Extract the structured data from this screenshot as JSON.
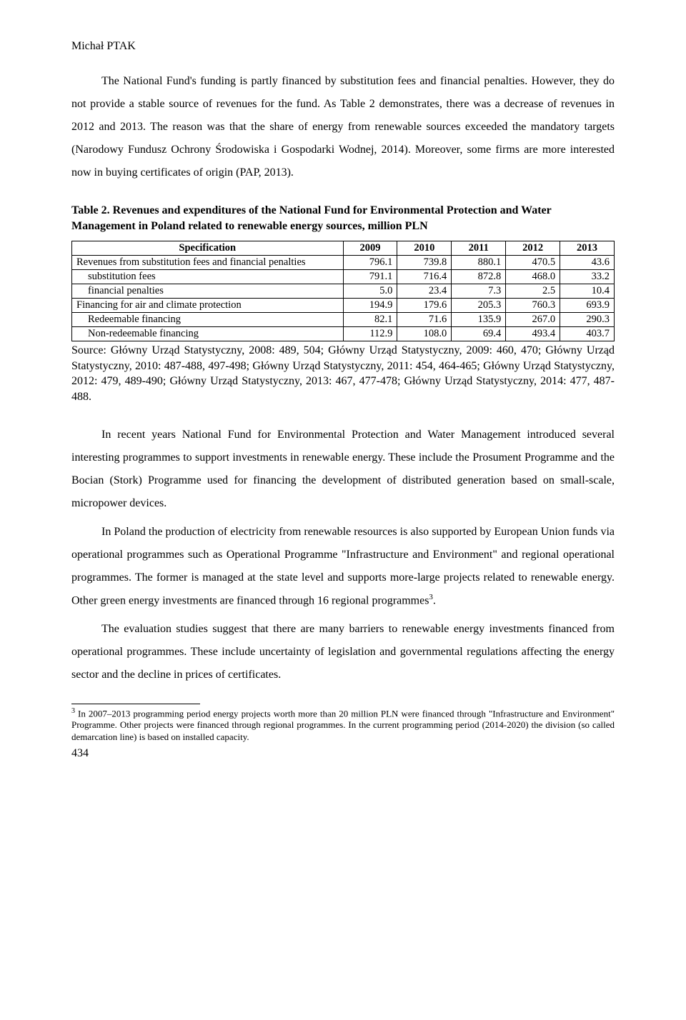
{
  "header": {
    "author": "Michał PTAK"
  },
  "paragraphs": {
    "p1": "The National Fund's funding is partly financed by substitution fees and financial penalties. However, they do not provide a stable source of revenues for the fund. As Table 2 demonstrates, there was a decrease of revenues in 2012 and 2013. The reason was that the share of energy from renewable sources exceeded the mandatory targets (Narodowy Fundusz Ochrony Środowiska i Gospodarki Wodnej, 2014). Moreover, some firms are more interested now in buying certificates of origin (PAP, 2013).",
    "p2": "In recent years National Fund for Environmental Protection and Water Management introduced several interesting programmes to support investments in renewable energy. These include the Prosument Programme and the Bocian (Stork) Programme used for financing the development of distributed generation based on small-scale, micropower devices.",
    "p3a": "In Poland the production of electricity from renewable resources is also supported by European Union funds via operational programmes such as Operational Programme \"Infrastructure and Environment\" and regional operational programmes. The former is managed at the state level and supports more-large projects related to renewable energy. Other green energy investments are financed through 16 regional programmes",
    "p3_fn_marker": "3",
    "p3b": ".",
    "p4": "The evaluation studies suggest that there are many barriers to renewable energy investments financed from operational programmes. These include uncertainty of legislation and governmental regulations affecting the energy sector and the decline in prices of certificates."
  },
  "table": {
    "caption_label": "Table 2. ",
    "caption_text": "Revenues and expenditures of the National Fund for Environmental Protection and Water Management in Poland related to renewable energy sources, million PLN",
    "columns": [
      "Specification",
      "2009",
      "2010",
      "2011",
      "2012",
      "2013"
    ],
    "col_widths": [
      "50%",
      "10%",
      "10%",
      "10%",
      "10%",
      "10%"
    ],
    "rows": [
      {
        "label": "Revenues from substitution fees and financial penalties",
        "indent": 0,
        "values": [
          "796.1",
          "739.8",
          "880.1",
          "470.5",
          "43.6"
        ]
      },
      {
        "label": "substitution fees",
        "indent": 1,
        "values": [
          "791.1",
          "716.4",
          "872.8",
          "468.0",
          "33.2"
        ]
      },
      {
        "label": "financial penalties",
        "indent": 1,
        "values": [
          "5.0",
          "23.4",
          "7.3",
          "2.5",
          "10.4"
        ]
      },
      {
        "label": "Financing for air and climate protection",
        "indent": 0,
        "values": [
          "194.9",
          "179.6",
          "205.3",
          "760.3",
          "693.9"
        ]
      },
      {
        "label": "Redeemable financing",
        "indent": 1,
        "values": [
          "82.1",
          "71.6",
          "135.9",
          "267.0",
          "290.3"
        ]
      },
      {
        "label": "Non-redeemable financing",
        "indent": 1,
        "values": [
          "112.9",
          "108.0",
          "69.4",
          "493.4",
          "403.7"
        ]
      }
    ],
    "source": "Source: Główny Urząd Statystyczny, 2008: 489, 504; Główny Urząd Statystyczny, 2009: 460, 470; Główny Urząd Statystyczny, 2010: 487-488, 497-498; Główny Urząd Statystyczny, 2011: 454, 464-465; Główny Urząd Statystyczny, 2012: 479, 489-490; Główny Urząd Statystyczny, 2013: 467, 477-478; Główny Urząd Statystyczny, 2014: 477, 487-488."
  },
  "footnote": {
    "marker": "3",
    "text": " In 2007–2013 programming period energy projects worth more than 20 million PLN were financed through \"Infrastructure and Environment\" Programme. Other projects were financed through regional programmes. In the current programming period (2014-2020) the division (so called demarcation line) is based on installed capacity."
  },
  "pageNumber": "434"
}
